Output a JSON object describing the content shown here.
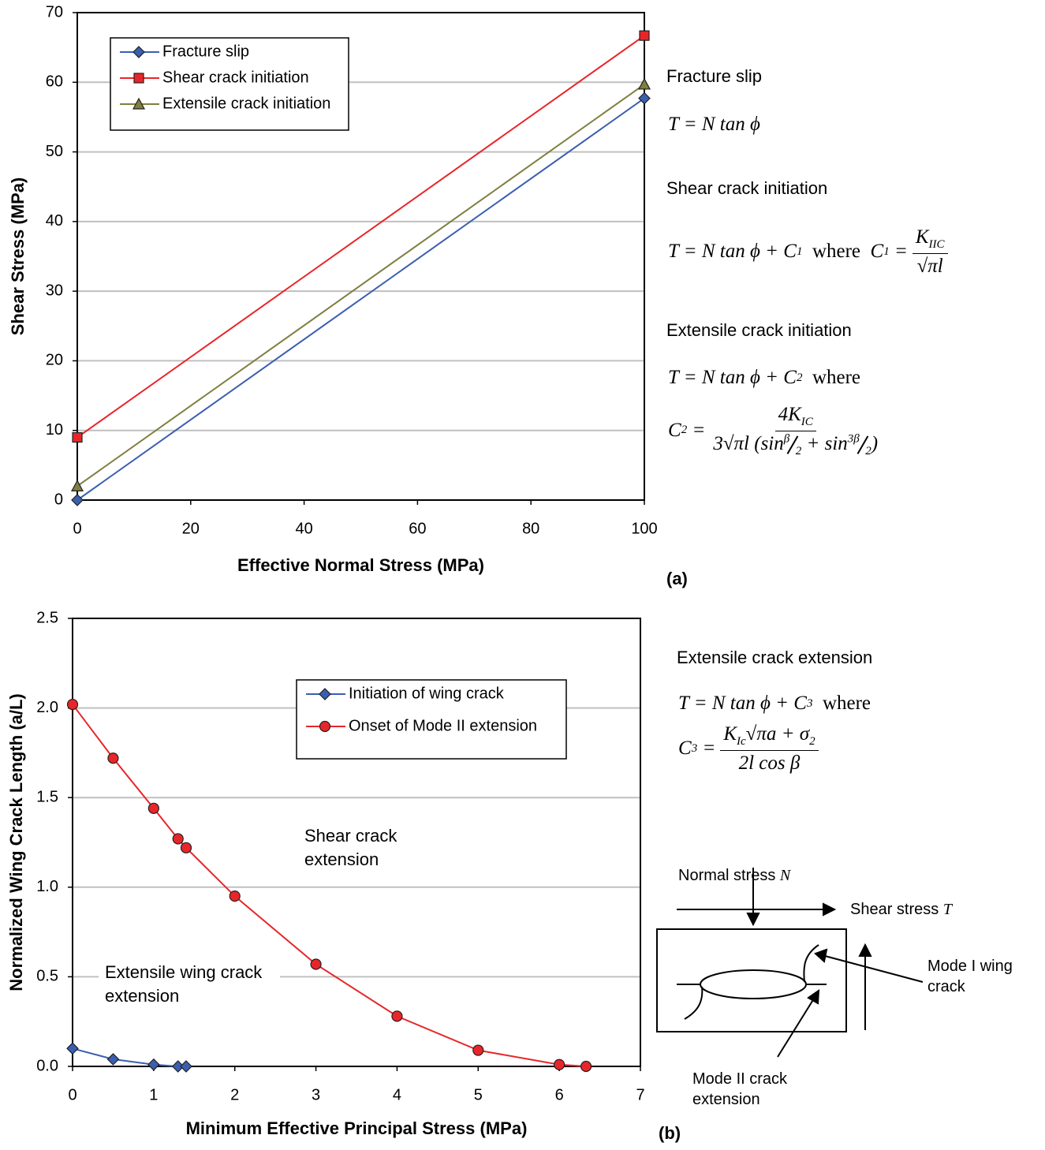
{
  "chart_data": [
    {
      "type": "line",
      "label": "(a)",
      "xlabel": "Effective Normal Stress (MPa)",
      "ylabel": "Shear Stress (MPa)",
      "xlim": [
        0,
        100
      ],
      "xticks": [
        0,
        20,
        40,
        60,
        80,
        100
      ],
      "ylim": [
        0,
        70
      ],
      "yticks": [
        0,
        10,
        20,
        30,
        40,
        50,
        60,
        70
      ],
      "grid": true,
      "legend": "upper left",
      "series": [
        {
          "name": "Fracture slip",
          "color": "#3b5fb0",
          "marker": "diamond",
          "x": [
            0,
            100
          ],
          "values": [
            0,
            57.7
          ]
        },
        {
          "name": "Shear crack initiation",
          "color": "#e8262a",
          "marker": "square",
          "x": [
            0,
            100
          ],
          "values": [
            9,
            66.7
          ]
        },
        {
          "name": "Extensile crack initiation",
          "color": "#7f7f3f",
          "marker": "triangle",
          "x": [
            0,
            100
          ],
          "values": [
            2,
            59.7
          ]
        }
      ]
    },
    {
      "type": "line",
      "label": "(b)",
      "xlabel": "Minimum Effective Principal Stress (MPa)",
      "ylabel": "Normalized Wing Crack Length (a/L)",
      "xlim": [
        0,
        7
      ],
      "xticks": [
        0,
        1,
        2,
        3,
        4,
        5,
        6,
        7
      ],
      "ylim": [
        0,
        2.5
      ],
      "yticks": [
        {
          "value": 0,
          "label": "0.0"
        },
        0.5,
        {
          "value": 1,
          "label": "1.0"
        },
        1.5,
        {
          "value": 2,
          "label": "2.0"
        },
        2.5
      ],
      "grid": true,
      "legend": "upper right",
      "annotations": [
        "Shear crack extension",
        "Extensile wing crack extension"
      ],
      "series": [
        {
          "name": "Initiation of wing crack",
          "color": "#3b5fb0",
          "marker": "diamond",
          "x": [
            0,
            0.5,
            1,
            1.3,
            1.4
          ],
          "values": [
            0.1,
            0.04,
            0.01,
            0,
            0
          ]
        },
        {
          "name": "Onset of Mode II extension",
          "color": "#e8262a",
          "marker": "circle",
          "x": [
            0,
            0.5,
            1,
            1.3,
            1.4,
            2,
            3,
            4,
            5,
            6,
            6.33
          ],
          "values": [
            2.02,
            1.72,
            1.44,
            1.27,
            1.22,
            0.95,
            0.57,
            0.28,
            0.09,
            0.01,
            0
          ]
        }
      ]
    }
  ],
  "equations": {
    "fracture_slip": {
      "title": "Fracture slip",
      "parts": [
        "T = N tan ϕ"
      ]
    },
    "shear_initiation": {
      "title": "Shear crack initiation",
      "parts": [
        "T = N tan ϕ + C",
        "1",
        "where",
        "C",
        "1",
        "=",
        "K",
        "IIC",
        "√πl"
      ]
    },
    "extensile_initiation": {
      "title": "Extensile crack initiation",
      "parts": [
        "T = N tan ϕ + C",
        "2",
        "where",
        "C",
        "2",
        "=",
        "4K",
        "IC",
        "3√πl (sin",
        "β",
        "2",
        "+ sin",
        "3β",
        "2",
        ")"
      ]
    },
    "extensile_extension": {
      "title": "Extensile crack extension",
      "parts": [
        "T = N tan ϕ + C",
        "3",
        "where",
        "C",
        "3",
        "=",
        "K",
        "Ic",
        "√πa + σ",
        "2",
        "2l cos β"
      ]
    }
  },
  "diagram": {
    "normal_stress": "Normal stress",
    "normal_symbol": "N",
    "shear_stress": "Shear stress",
    "shear_symbol": "T",
    "mode_i": "Mode I wing crack",
    "mode_ii": "Mode II crack extension"
  }
}
